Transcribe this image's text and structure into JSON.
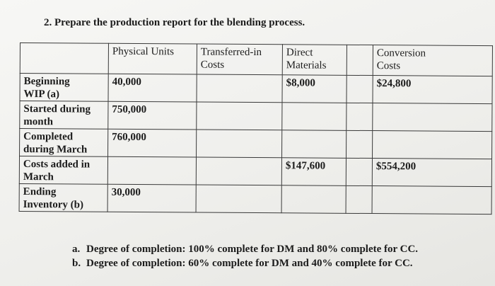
{
  "question": "2.   Prepare the production report for the blending process.",
  "table": {
    "headers": {
      "label": "",
      "physical_units": "Physical Units",
      "transferred_in": [
        "Transferred-in",
        "Costs"
      ],
      "direct_materials": [
        "Direct",
        "Materials"
      ],
      "extra": "",
      "conversion": [
        "Conversion",
        "Costs"
      ]
    },
    "rows": [
      {
        "label": [
          "Beginning",
          "WIP (a)"
        ],
        "physical_units": "40,000",
        "transferred_in": "",
        "direct_materials": "$8,000",
        "extra": "",
        "conversion": "$24,800"
      },
      {
        "label": [
          "Started during",
          "month"
        ],
        "physical_units": "750,000",
        "transferred_in": "",
        "direct_materials": "",
        "extra": "",
        "conversion": ""
      },
      {
        "label": [
          "Completed",
          "during March"
        ],
        "physical_units": "760,000",
        "transferred_in": "",
        "direct_materials": "",
        "extra": "",
        "conversion": ""
      },
      {
        "label": [
          "Costs added in",
          "March"
        ],
        "physical_units": "",
        "transferred_in": "",
        "direct_materials": "$147,600",
        "extra": "",
        "conversion": "$554,200"
      },
      {
        "label": [
          "Ending",
          "Inventory (b)"
        ],
        "physical_units": "30,000",
        "transferred_in": "",
        "direct_materials": "",
        "extra": "",
        "conversion": ""
      }
    ]
  },
  "notes": [
    {
      "marker": "a.",
      "text": "Degree of completion: 100% complete for DM and 80% complete for CC."
    },
    {
      "marker": "b.",
      "text": "Degree of completion: 60% complete for DM and 40% complete for CC."
    }
  ]
}
